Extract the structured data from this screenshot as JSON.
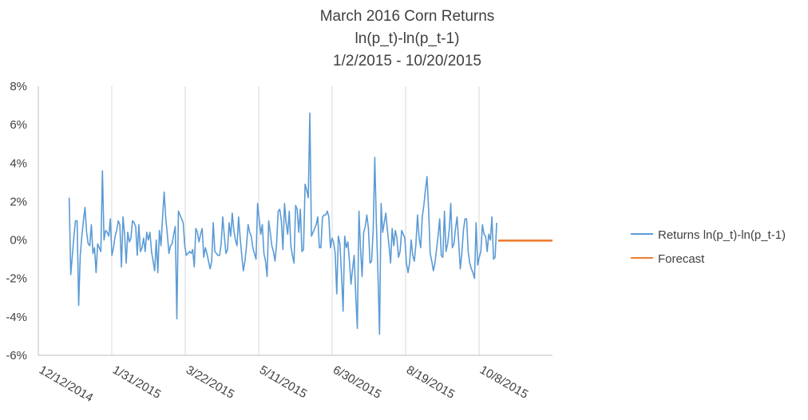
{
  "chart_data": {
    "type": "line",
    "title_lines": [
      "March 2016 Corn Returns",
      "ln(p_t)-ln(p_t-1)",
      "1/2/2015 - 10/20/2015"
    ],
    "x_ticks": [
      "12/12/2014",
      "1/31/2015",
      "3/22/2015",
      "5/11/2015",
      "6/30/2015",
      "8/19/2015",
      "10/8/2015"
    ],
    "x_range": [
      "12/12/2014",
      "11/27/2015"
    ],
    "y_ticks": [
      "8%",
      "6%",
      "4%",
      "2%",
      "0%",
      "-2%",
      "-4%",
      "-6%"
    ],
    "ylim": [
      -0.06,
      0.08
    ],
    "grid": "vertical",
    "legend_position": "right",
    "colors": {
      "returns": "#5b9bd5",
      "forecast": "#ed7d31",
      "grid": "#d9d9d9",
      "axis": "#bfbfbf"
    },
    "series": [
      {
        "name": "Returns ln(p_t)-ln(p_t-1)",
        "x_start": "1/2/2015",
        "x_end": "10/20/2015",
        "values": [
          0.022,
          -0.018,
          -0.008,
          0.002,
          0.01,
          0.01,
          -0.034,
          -0.008,
          0.002,
          0.01,
          0.017,
          0.004,
          -0.002,
          -0.003,
          0.008,
          -0.007,
          -0.004,
          -0.017,
          -0.002,
          -0.004,
          -0.006,
          0.036,
          0.0,
          0.005,
          0.004,
          0.002,
          0.011,
          -0.008,
          -0.004,
          0.002,
          0.005,
          0.01,
          0.008,
          -0.014,
          0.012,
          0.003,
          -0.012,
          0.004,
          -0.001,
          0.001,
          0.01,
          0.009,
          0.007,
          -0.008,
          0.008,
          -0.006,
          -0.004,
          0.001,
          -0.006,
          0.004,
          0.0,
          0.004,
          -0.006,
          -0.011,
          -0.016,
          0.0,
          -0.017,
          0.005,
          -0.003,
          0.012,
          0.025,
          0.011,
          0.003,
          -0.007,
          -0.003,
          -0.002,
          0.003,
          0.007,
          -0.041,
          0.015,
          0.013,
          0.011,
          0.009,
          -0.003,
          -0.008,
          -0.007,
          -0.006,
          -0.007,
          -0.005,
          -0.014,
          0.006,
          0.004,
          -0.001,
          0.003,
          0.006,
          -0.009,
          -0.004,
          -0.007,
          -0.011,
          -0.015,
          -0.011,
          0.009,
          -0.006,
          -0.007,
          -0.008,
          -0.008,
          -0.002,
          0.012,
          0.002,
          -0.007,
          -0.005,
          0.009,
          0.002,
          0.014,
          0.005,
          0.0,
          -0.003,
          0.012,
          0.001,
          -0.008,
          -0.016,
          -0.011,
          -0.003,
          0.008,
          0.004,
          0.002,
          -0.004,
          -0.007,
          -0.01,
          0.019,
          0.011,
          0.003,
          0.008,
          -0.007,
          -0.011,
          -0.019,
          0.01,
          0.004,
          -0.003,
          -0.006,
          -0.011,
          -0.002,
          0.015,
          0.016,
          0.01,
          -0.005,
          0.019,
          0.009,
          0.003,
          0.015,
          -0.003,
          -0.008,
          -0.012,
          0.018,
          0.016,
          0.004,
          0.016,
          -0.006,
          -0.005,
          0.029,
          0.026,
          0.022,
          0.066,
          0.002,
          0.004,
          0.006,
          0.008,
          0.012,
          -0.004,
          -0.004,
          0.012,
          0.013,
          0.013,
          0.015,
          0.012,
          -0.004,
          0.001,
          -0.001,
          -0.007,
          -0.028,
          0.002,
          -0.002,
          -0.018,
          -0.037,
          0.002,
          -0.004,
          -0.001,
          -0.011,
          -0.023,
          -0.015,
          -0.008,
          -0.029,
          -0.046,
          0.015,
          -0.004,
          -0.019,
          0.004,
          0.007,
          0.013,
          0.006,
          -0.012,
          -0.011,
          0.005,
          0.043,
          0.009,
          -0.017,
          -0.049,
          0.019,
          0.004,
          0.009,
          0.014,
          0.005,
          -0.003,
          -0.012,
          0.006,
          -0.003,
          0.005,
          0.001,
          -0.009,
          -0.006,
          0.005,
          0.003,
          0.001,
          -0.012,
          -0.017,
          -0.012,
          0.0,
          -0.008,
          -0.011,
          -0.002,
          0.013,
          0.001,
          -0.004,
          0.012,
          0.018,
          0.026,
          0.033,
          0.016,
          -0.007,
          -0.011,
          -0.016,
          -0.012,
          -0.005,
          0.002,
          0.011,
          -0.008,
          -0.009,
          0.015,
          -0.006,
          -0.002,
          0.005,
          0.019,
          -0.004,
          -0.002,
          0.006,
          0.012,
          -0.001,
          -0.015,
          -0.007,
          0.005,
          0.011,
          0.011,
          -0.006,
          -0.012,
          -0.015,
          -0.017,
          -0.02,
          0.009,
          -0.013,
          -0.009,
          -0.006,
          0.008,
          0.003,
          0.002,
          -0.006,
          0.003,
          0.0,
          0.012,
          -0.01,
          -0.009,
          0.009
        ]
      },
      {
        "name": "Forecast",
        "x_start": "10/21/2015",
        "x_end": "11/27/2015",
        "values": [
          -0.0003,
          -0.0003
        ]
      }
    ]
  }
}
